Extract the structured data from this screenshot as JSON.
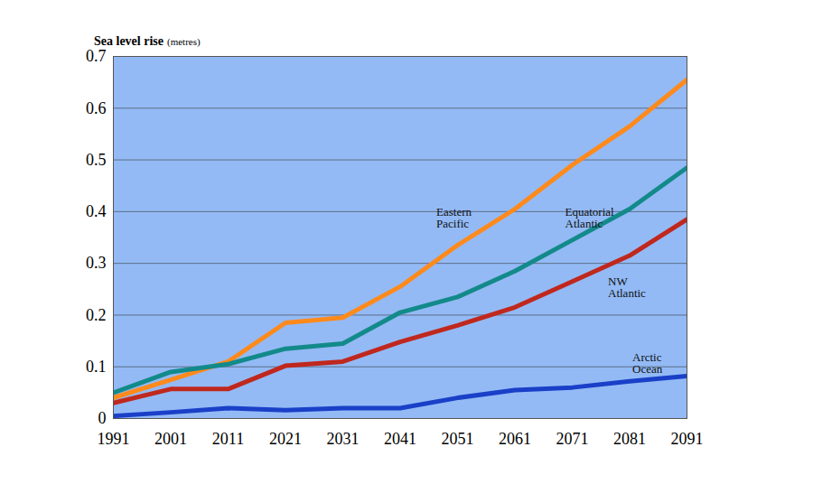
{
  "chart_data": {
    "type": "line",
    "title": "Sea level rise",
    "ylabel": "(metres)",
    "x": [
      1991,
      2001,
      2011,
      2021,
      2031,
      2041,
      2051,
      2061,
      2071,
      2081,
      2091
    ],
    "series": [
      {
        "name": "Eastern Pacific",
        "color": "#ff8a1c",
        "values": [
          0.04,
          0.075,
          0.11,
          0.185,
          0.195,
          0.255,
          0.335,
          0.405,
          0.49,
          0.565,
          0.655
        ]
      },
      {
        "name": "Equatorial Atlantic",
        "color": "#138a8a",
        "values": [
          0.05,
          0.09,
          0.105,
          0.135,
          0.145,
          0.205,
          0.235,
          0.285,
          0.345,
          0.405,
          0.485
        ]
      },
      {
        "name": "NW Atlantic",
        "color": "#c0281e",
        "values": [
          0.03,
          0.057,
          0.057,
          0.102,
          0.11,
          0.148,
          0.18,
          0.215,
          0.265,
          0.315,
          0.385
        ]
      },
      {
        "name": "Arctic Ocean",
        "color": "#1a40c8",
        "values": [
          0.005,
          0.012,
          0.02,
          0.016,
          0.02,
          0.02,
          0.04,
          0.055,
          0.06,
          0.072,
          0.082
        ]
      }
    ],
    "xlim": [
      1991,
      2091
    ],
    "xticks": [
      1991,
      2001,
      2011,
      2021,
      2031,
      2041,
      2051,
      2061,
      2071,
      2081,
      2091
    ],
    "ylim": [
      0,
      0.7
    ],
    "yticks": [
      0,
      0.1,
      0.2,
      0.3,
      0.4,
      0.5,
      0.6,
      0.7
    ],
    "grid": true
  }
}
